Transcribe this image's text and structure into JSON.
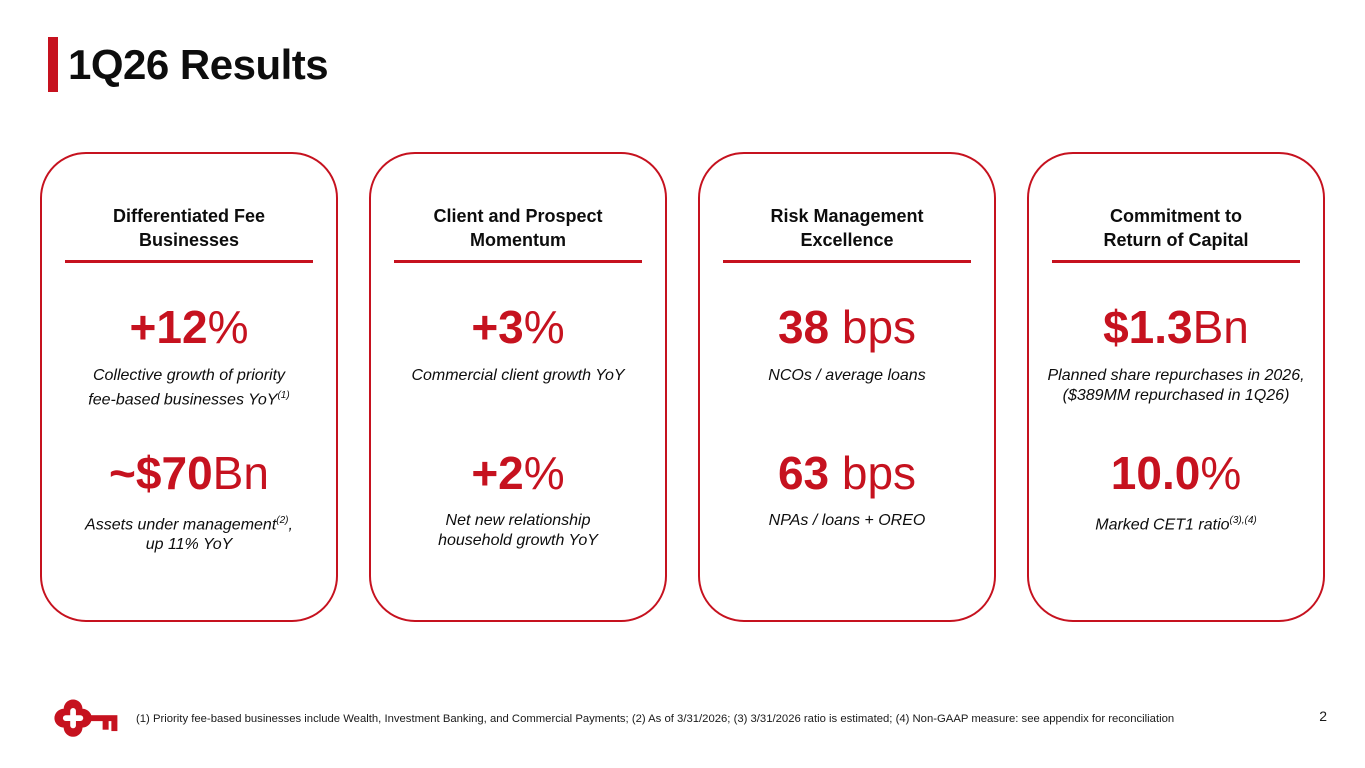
{
  "slide": {
    "title": "1Q26 Results",
    "page_number": "2",
    "footnote": "(1) Priority fee-based businesses include Wealth, Investment Banking, and Commercial Payments; (2) As of 3/31/2026; (3) 3/31/2026 ratio is estimated; (4) Non-GAAP measure: see appendix for reconciliation"
  },
  "colors": {
    "brand_red": "#C6121F",
    "text": "#111111"
  },
  "logo": {
    "name": "keybank-key-logo"
  },
  "cards": [
    {
      "id": "differentiated-fee-businesses",
      "title_lines": [
        "Differentiated Fee",
        "Businesses"
      ],
      "stats": [
        {
          "value": [
            {
              "t": "+12",
              "bold": true
            },
            {
              "t": "%",
              "bold": false
            }
          ],
          "caption": [
            [
              {
                "t": "Collective growth of priority"
              }
            ],
            [
              {
                "t": "fee-based businesses YoY"
              },
              {
                "t": "(1)",
                "sup": true
              }
            ]
          ]
        },
        {
          "value": [
            {
              "t": "~$70",
              "bold": true
            },
            {
              "t": "Bn",
              "bold": false
            }
          ],
          "caption": [
            [
              {
                "t": "Assets under management"
              },
              {
                "t": "(2)",
                "sup": true
              },
              {
                "t": ","
              }
            ],
            [
              {
                "t": "up 11% YoY"
              }
            ]
          ]
        }
      ]
    },
    {
      "id": "client-and-prospect-momentum",
      "title_lines": [
        "Client and Prospect",
        "Momentum"
      ],
      "stats": [
        {
          "value": [
            {
              "t": "+3",
              "bold": true
            },
            {
              "t": "%",
              "bold": false
            }
          ],
          "caption": [
            [
              {
                "t": "Commercial client growth YoY"
              }
            ]
          ]
        },
        {
          "value": [
            {
              "t": "+2",
              "bold": true
            },
            {
              "t": "%",
              "bold": false
            }
          ],
          "caption": [
            [
              {
                "t": "Net new relationship"
              }
            ],
            [
              {
                "t": "household growth YoY"
              }
            ]
          ]
        }
      ]
    },
    {
      "id": "risk-management-excellence",
      "title_lines": [
        "Risk Management",
        "Excellence"
      ],
      "stats": [
        {
          "value": [
            {
              "t": "38",
              "bold": true
            },
            {
              "t": " bps",
              "bold": false
            }
          ],
          "caption": [
            [
              {
                "t": "NCOs / average loans"
              }
            ]
          ]
        },
        {
          "value": [
            {
              "t": "63",
              "bold": true
            },
            {
              "t": " bps",
              "bold": false
            }
          ],
          "caption": [
            [
              {
                "t": "NPAs / loans + OREO"
              }
            ]
          ]
        }
      ]
    },
    {
      "id": "commitment-to-return-of-capital",
      "title_lines": [
        "Commitment to",
        "Return of Capital"
      ],
      "stats": [
        {
          "value": [
            {
              "t": "$1.3",
              "bold": true
            },
            {
              "t": "Bn",
              "bold": false
            }
          ],
          "caption": [
            [
              {
                "t": "Planned share repurchases in 2026,"
              }
            ],
            [
              {
                "t": "($389MM repurchased in 1Q26)"
              }
            ]
          ]
        },
        {
          "value": [
            {
              "t": "10.0",
              "bold": true
            },
            {
              "t": "%",
              "bold": false
            }
          ],
          "caption": [
            [
              {
                "t": "Marked CET1 ratio"
              },
              {
                "t": "(3),(4)",
                "sup": true
              }
            ]
          ]
        }
      ]
    }
  ]
}
